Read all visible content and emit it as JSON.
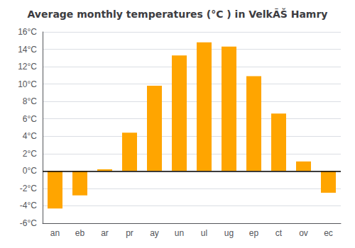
{
  "chart_data": {
    "type": "bar",
    "title": "Average monthly temperatures (°C ) in VelkÃŠ Hamry",
    "categories": [
      "an",
      "eb",
      "ar",
      "pr",
      "ay",
      "un",
      "ul",
      "ug",
      "ep",
      "ct",
      "ov",
      "ec"
    ],
    "values": [
      -4.3,
      -2.8,
      0.2,
      4.4,
      9.8,
      13.3,
      14.8,
      14.3,
      10.9,
      6.6,
      1.1,
      -2.5
    ],
    "color": "#FFA500",
    "ylim": [
      -6,
      16
    ],
    "yticks": [
      {
        "value": -6,
        "label": "-6°C"
      },
      {
        "value": -4,
        "label": "-4°C"
      },
      {
        "value": -2,
        "label": "-2°C"
      },
      {
        "value": 0,
        "label": "0°C"
      },
      {
        "value": 2,
        "label": "2°C"
      },
      {
        "value": 4,
        "label": "4°C"
      },
      {
        "value": 6,
        "label": "6°C"
      },
      {
        "value": 8,
        "label": "8°C"
      },
      {
        "value": 10,
        "label": "10°C"
      },
      {
        "value": 12,
        "label": "12°C"
      },
      {
        "value": 14,
        "label": "14°C"
      },
      {
        "value": 16,
        "label": "16°C"
      }
    ],
    "grid": true
  }
}
